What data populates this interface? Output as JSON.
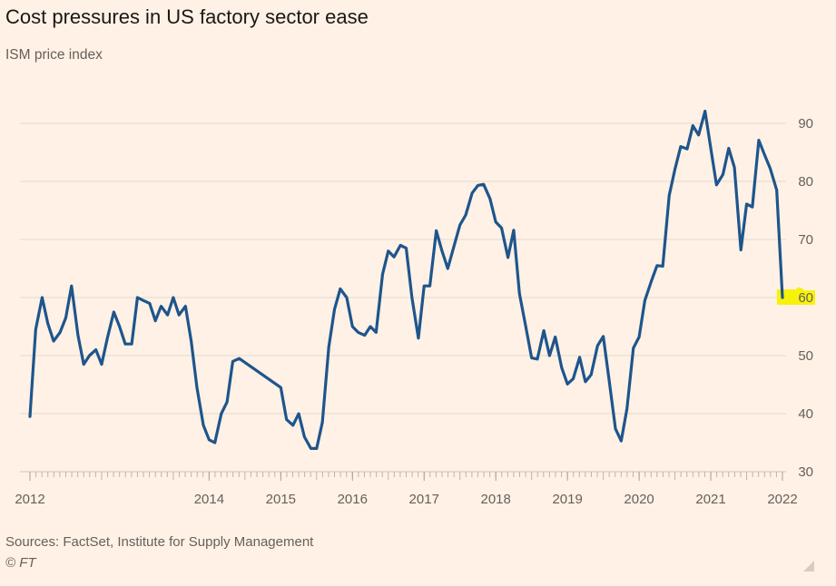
{
  "header": {
    "title": "Cost pressures in US factory sector ease",
    "subtitle": "ISM price index"
  },
  "footer": {
    "source": "Sources: FactSet, Institute for Supply Management",
    "credit": "© FT"
  },
  "colors": {
    "background": "#fff1e5",
    "line": "#1e558c",
    "grid": "#e6d9ce",
    "highlight": "#f7f20a",
    "text": "#66605c"
  },
  "chart_data": {
    "type": "line",
    "title": "Cost pressures in US factory sector ease",
    "subtitle": "ISM price index",
    "xlabel": "",
    "ylabel": "",
    "ylim": [
      30,
      92
    ],
    "y_ticks": [
      30,
      40,
      50,
      60,
      70,
      80,
      90
    ],
    "y_axis_side": "right",
    "x_ticks": [
      {
        "label": "2012",
        "x": 2012.0
      },
      {
        "label": "2014",
        "x": 2014.5
      },
      {
        "label": "2015",
        "x": 2015.5
      },
      {
        "label": "2016",
        "x": 2016.5
      },
      {
        "label": "2017",
        "x": 2017.5
      },
      {
        "label": "2018",
        "x": 2018.5
      },
      {
        "label": "2019",
        "x": 2019.5
      },
      {
        "label": "2020",
        "x": 2020.5
      },
      {
        "label": "2021",
        "x": 2021.5
      },
      {
        "label": "2022",
        "x": 2022.5
      }
    ],
    "grid": true,
    "highlight_last_label": "60",
    "series": [
      {
        "values": [
          [
            2012.0,
            39.5
          ],
          [
            2012.08,
            54.5
          ],
          [
            2012.17,
            60.0
          ],
          [
            2012.25,
            55.5
          ],
          [
            2012.33,
            52.5
          ],
          [
            2012.42,
            54.0
          ],
          [
            2012.5,
            56.5
          ],
          [
            2012.58,
            62.0
          ],
          [
            2012.67,
            53.5
          ],
          [
            2012.75,
            48.5
          ],
          [
            2012.83,
            50.0
          ],
          [
            2012.92,
            51.0
          ],
          [
            2013.0,
            48.5
          ],
          [
            2013.08,
            53.0
          ],
          [
            2013.17,
            57.5
          ],
          [
            2013.25,
            55.0
          ],
          [
            2013.33,
            52.0
          ],
          [
            2013.42,
            52.0
          ],
          [
            2013.5,
            60.0
          ],
          [
            2013.58,
            59.5
          ],
          [
            2013.67,
            59.0
          ],
          [
            2013.75,
            56.0
          ],
          [
            2013.83,
            58.5
          ],
          [
            2013.92,
            57.0
          ],
          [
            2014.0,
            60.0
          ],
          [
            2014.08,
            57.0
          ],
          [
            2014.17,
            58.5
          ],
          [
            2014.25,
            52.5
          ],
          [
            2014.33,
            44.5
          ],
          [
            2014.42,
            38.0
          ],
          [
            2014.5,
            35.5
          ],
          [
            2014.58,
            35.0
          ],
          [
            2014.67,
            40.0
          ],
          [
            2014.75,
            42.0
          ],
          [
            2014.83,
            49.0
          ],
          [
            2014.92,
            49.5
          ],
          [
            2015.5,
            44.5
          ],
          [
            2015.58,
            39.0
          ],
          [
            2015.67,
            38.0
          ],
          [
            2015.75,
            40.0
          ],
          [
            2015.83,
            36.0
          ],
          [
            2015.92,
            34.0
          ],
          [
            2016.0,
            34.0
          ],
          [
            2016.08,
            38.5
          ],
          [
            2016.17,
            51.5
          ],
          [
            2016.25,
            58.0
          ],
          [
            2016.33,
            61.5
          ],
          [
            2016.42,
            60.0
          ],
          [
            2016.5,
            55.0
          ],
          [
            2016.58,
            54.0
          ],
          [
            2016.67,
            53.5
          ],
          [
            2016.75,
            55.0
          ],
          [
            2016.83,
            54.0
          ],
          [
            2016.92,
            64.0
          ],
          [
            2017.0,
            68.0
          ],
          [
            2017.08,
            67.0
          ],
          [
            2017.17,
            69.0
          ],
          [
            2017.25,
            68.5
          ],
          [
            2017.33,
            60.0
          ],
          [
            2017.42,
            53.0
          ],
          [
            2017.5,
            62.0
          ],
          [
            2017.58,
            62.0
          ],
          [
            2017.67,
            71.5
          ],
          [
            2017.75,
            68.0
          ],
          [
            2017.83,
            65.0
          ],
          [
            2017.92,
            69.0
          ],
          [
            2018.0,
            72.5
          ],
          [
            2018.08,
            74.2
          ],
          [
            2018.17,
            78.0
          ],
          [
            2018.25,
            79.3
          ],
          [
            2018.33,
            79.5
          ],
          [
            2018.42,
            77.0
          ],
          [
            2018.5,
            73.0
          ],
          [
            2018.58,
            72.0
          ],
          [
            2018.67,
            66.9
          ],
          [
            2018.75,
            71.6
          ],
          [
            2018.83,
            60.7
          ],
          [
            2018.92,
            54.9
          ],
          [
            2019.0,
            49.6
          ],
          [
            2019.08,
            49.4
          ],
          [
            2019.17,
            54.3
          ],
          [
            2019.25,
            50.0
          ],
          [
            2019.33,
            53.2
          ],
          [
            2019.42,
            47.9
          ],
          [
            2019.5,
            45.1
          ],
          [
            2019.58,
            46.0
          ],
          [
            2019.67,
            49.7
          ],
          [
            2019.75,
            45.5
          ],
          [
            2019.83,
            46.7
          ],
          [
            2019.92,
            51.7
          ],
          [
            2020.0,
            53.3
          ],
          [
            2020.08,
            45.9
          ],
          [
            2020.17,
            37.4
          ],
          [
            2020.25,
            35.3
          ],
          [
            2020.33,
            40.8
          ],
          [
            2020.42,
            51.3
          ],
          [
            2020.5,
            53.2
          ],
          [
            2020.58,
            59.5
          ],
          [
            2020.67,
            62.8
          ],
          [
            2020.75,
            65.5
          ],
          [
            2020.83,
            65.4
          ],
          [
            2020.92,
            77.6
          ],
          [
            2021.0,
            82.1
          ],
          [
            2021.08,
            86.0
          ],
          [
            2021.17,
            85.6
          ],
          [
            2021.25,
            89.6
          ],
          [
            2021.33,
            88.0
          ],
          [
            2021.42,
            92.1
          ],
          [
            2021.5,
            85.7
          ],
          [
            2021.58,
            79.4
          ],
          [
            2021.67,
            81.2
          ],
          [
            2021.75,
            85.7
          ],
          [
            2021.83,
            82.4
          ],
          [
            2021.92,
            68.2
          ],
          [
            2022.0,
            76.1
          ],
          [
            2022.08,
            75.6
          ],
          [
            2022.17,
            87.1
          ],
          [
            2022.25,
            84.6
          ],
          [
            2022.33,
            82.2
          ],
          [
            2022.42,
            78.5
          ],
          [
            2022.5,
            60.0
          ]
        ]
      }
    ]
  }
}
